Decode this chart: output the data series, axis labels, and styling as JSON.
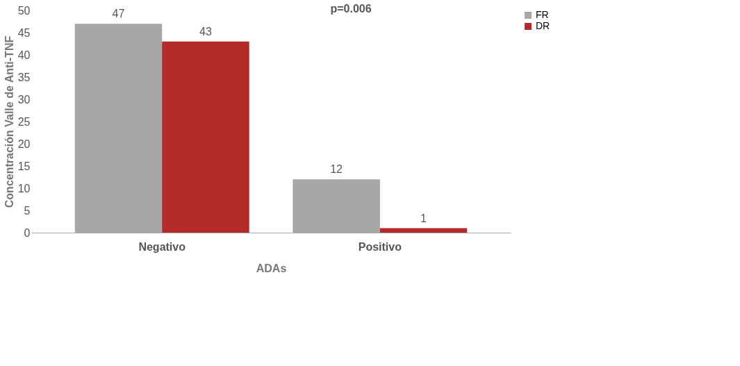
{
  "chart_data": {
    "type": "bar",
    "xlabel": "ADAs",
    "ylabel": "Concentración Valle de Anti-TNF",
    "categories": [
      "Negativo",
      "Positivo"
    ],
    "series": [
      {
        "name": "FR",
        "color": "#a6a6a6",
        "values": [
          47,
          12
        ]
      },
      {
        "name": "DR",
        "color": "#b42a2a",
        "values": [
          43,
          1
        ]
      }
    ],
    "ylim": [
      0,
      50
    ],
    "yticks": [
      0,
      5,
      10,
      15,
      20,
      25,
      30,
      35,
      40,
      45,
      50
    ],
    "grid": false,
    "legend": "right",
    "data_labels": true,
    "annotations": [
      "p=0.006"
    ]
  }
}
